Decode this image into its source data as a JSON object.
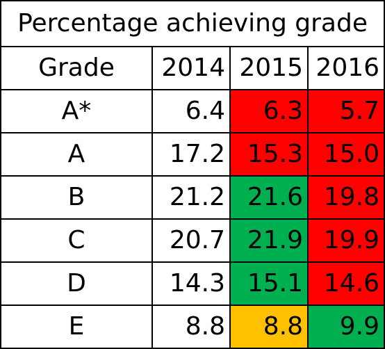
{
  "title": "Percentage achieving grade",
  "header": {
    "grade_label": "Grade",
    "years": [
      "2014",
      "2015",
      "2016"
    ]
  },
  "colors": {
    "red": "#ff0000",
    "green": "#00b050",
    "amber": "#ffc000",
    "none": "#ffffff"
  },
  "rows": [
    {
      "grade": "A*",
      "values": [
        "6.4",
        "6.3",
        "5.7"
      ],
      "fills": [
        "none",
        "red",
        "red"
      ]
    },
    {
      "grade": "A",
      "values": [
        "17.2",
        "15.3",
        "15.0"
      ],
      "fills": [
        "none",
        "red",
        "red"
      ]
    },
    {
      "grade": "B",
      "values": [
        "21.2",
        "21.6",
        "19.8"
      ],
      "fills": [
        "none",
        "green",
        "red"
      ]
    },
    {
      "grade": "C",
      "values": [
        "20.7",
        "21.9",
        "19.9"
      ],
      "fills": [
        "none",
        "green",
        "red"
      ]
    },
    {
      "grade": "D",
      "values": [
        "14.3",
        "15.1",
        "14.6"
      ],
      "fills": [
        "none",
        "green",
        "red"
      ]
    },
    {
      "grade": "E",
      "values": [
        "8.8",
        "8.8",
        "9.9"
      ],
      "fills": [
        "none",
        "amber",
        "green"
      ]
    }
  ]
}
